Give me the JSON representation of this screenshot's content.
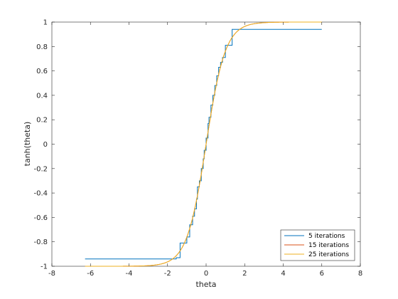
{
  "chart_data": {
    "type": "line",
    "title": "",
    "xlabel": "theta",
    "ylabel": "tanh(theta)",
    "xlim": [
      -8,
      8
    ],
    "ylim": [
      -1,
      1
    ],
    "xticks": [
      -8,
      -6,
      -4,
      -2,
      0,
      2,
      4,
      6,
      8
    ],
    "yticks": [
      -1,
      -0.8,
      -0.6,
      -0.4,
      -0.2,
      0,
      0.2,
      0.4,
      0.6,
      0.8,
      1
    ],
    "xtick_labels": [
      "-8",
      "-6",
      "-4",
      "-2",
      "0",
      "2",
      "4",
      "6",
      "8"
    ],
    "ytick_labels": [
      "-1",
      "-0.8",
      "-0.6",
      "-0.4",
      "-0.2",
      "0",
      "0.2",
      "0.4",
      "0.6",
      "0.8",
      "1"
    ],
    "grid": false,
    "legend_position": "bottom-right",
    "series": [
      {
        "name": "5 iterations",
        "color": "#0072bd",
        "x": [
          -6.28,
          -1.55,
          -1.55,
          -1.35,
          -1.35,
          -1.0,
          -1.0,
          -0.85,
          -0.85,
          -0.7,
          -0.7,
          -0.6,
          -0.6,
          -0.5,
          -0.5,
          -0.45,
          -0.45,
          -0.35,
          -0.35,
          -0.25,
          -0.25,
          -0.15,
          -0.15,
          -0.1,
          -0.1,
          0.0,
          0.0,
          0.1,
          0.1,
          0.15,
          0.15,
          0.25,
          0.25,
          0.35,
          0.35,
          0.45,
          0.45,
          0.55,
          0.55,
          0.65,
          0.65,
          0.75,
          0.75,
          0.85,
          0.85,
          1.0,
          1.0,
          1.35,
          1.35,
          6.0
        ],
        "y": [
          -0.94,
          -0.94,
          -0.93,
          -0.93,
          -0.81,
          -0.81,
          -0.76,
          -0.76,
          -0.66,
          -0.66,
          -0.59,
          -0.59,
          -0.53,
          -0.53,
          -0.45,
          -0.45,
          -0.35,
          -0.35,
          -0.3,
          -0.3,
          -0.2,
          -0.2,
          -0.12,
          -0.12,
          -0.05,
          -0.05,
          0.05,
          0.05,
          0.17,
          0.17,
          0.22,
          0.22,
          0.32,
          0.32,
          0.4,
          0.4,
          0.48,
          0.48,
          0.56,
          0.56,
          0.63,
          0.63,
          0.67,
          0.67,
          0.71,
          0.71,
          0.81,
          0.81,
          0.94,
          0.94
        ]
      },
      {
        "name": "15 iterations",
        "color": "#d95319",
        "func": "tanh",
        "x_range": [
          -6.28,
          6.0
        ]
      },
      {
        "name": "25 iterations",
        "color": "#edb120",
        "func": "tanh",
        "x_range": [
          -6.28,
          6.0
        ]
      }
    ]
  }
}
